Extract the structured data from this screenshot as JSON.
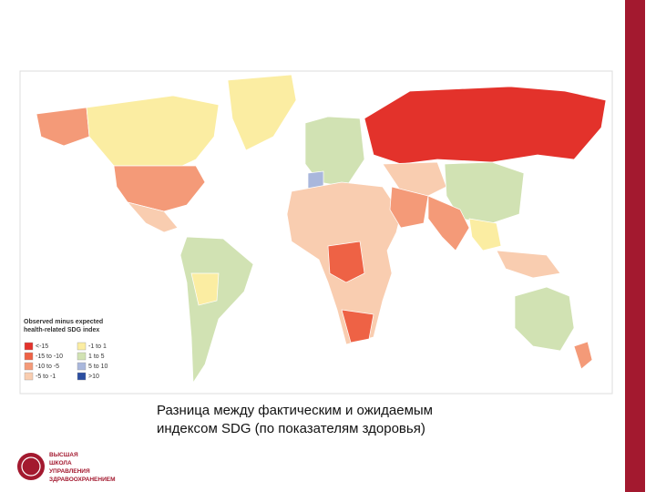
{
  "map": {
    "legend": {
      "title": [
        "Observed minus expected",
        "health-related SDG index"
      ],
      "items": [
        {
          "label": "<-15",
          "color": "#e3322b"
        },
        {
          "label": "-15 to -10",
          "color": "#ee6245"
        },
        {
          "label": "-10 to -5",
          "color": "#f49a78"
        },
        {
          "label": "-5 to -1",
          "color": "#f9cdb0"
        },
        {
          "label": "-1 to 1",
          "color": "#fbeda2"
        },
        {
          "label": "1 to 5",
          "color": "#d1e2b3"
        },
        {
          "label": "5 to 10",
          "color": "#a9b7dc"
        },
        {
          "label": ">10",
          "color": "#2b4ea0"
        }
      ]
    }
  },
  "caption": [
    "Разница между фактическим и ожидаемым",
    "индексом SDG (по показателям здоровья)"
  ],
  "logo": {
    "lines": [
      "ВЫСШАЯ",
      "ШКОЛА",
      "УПРАВЛЕНИЯ",
      "ЗДРАВООХРАНЕНИЕМ"
    ]
  }
}
